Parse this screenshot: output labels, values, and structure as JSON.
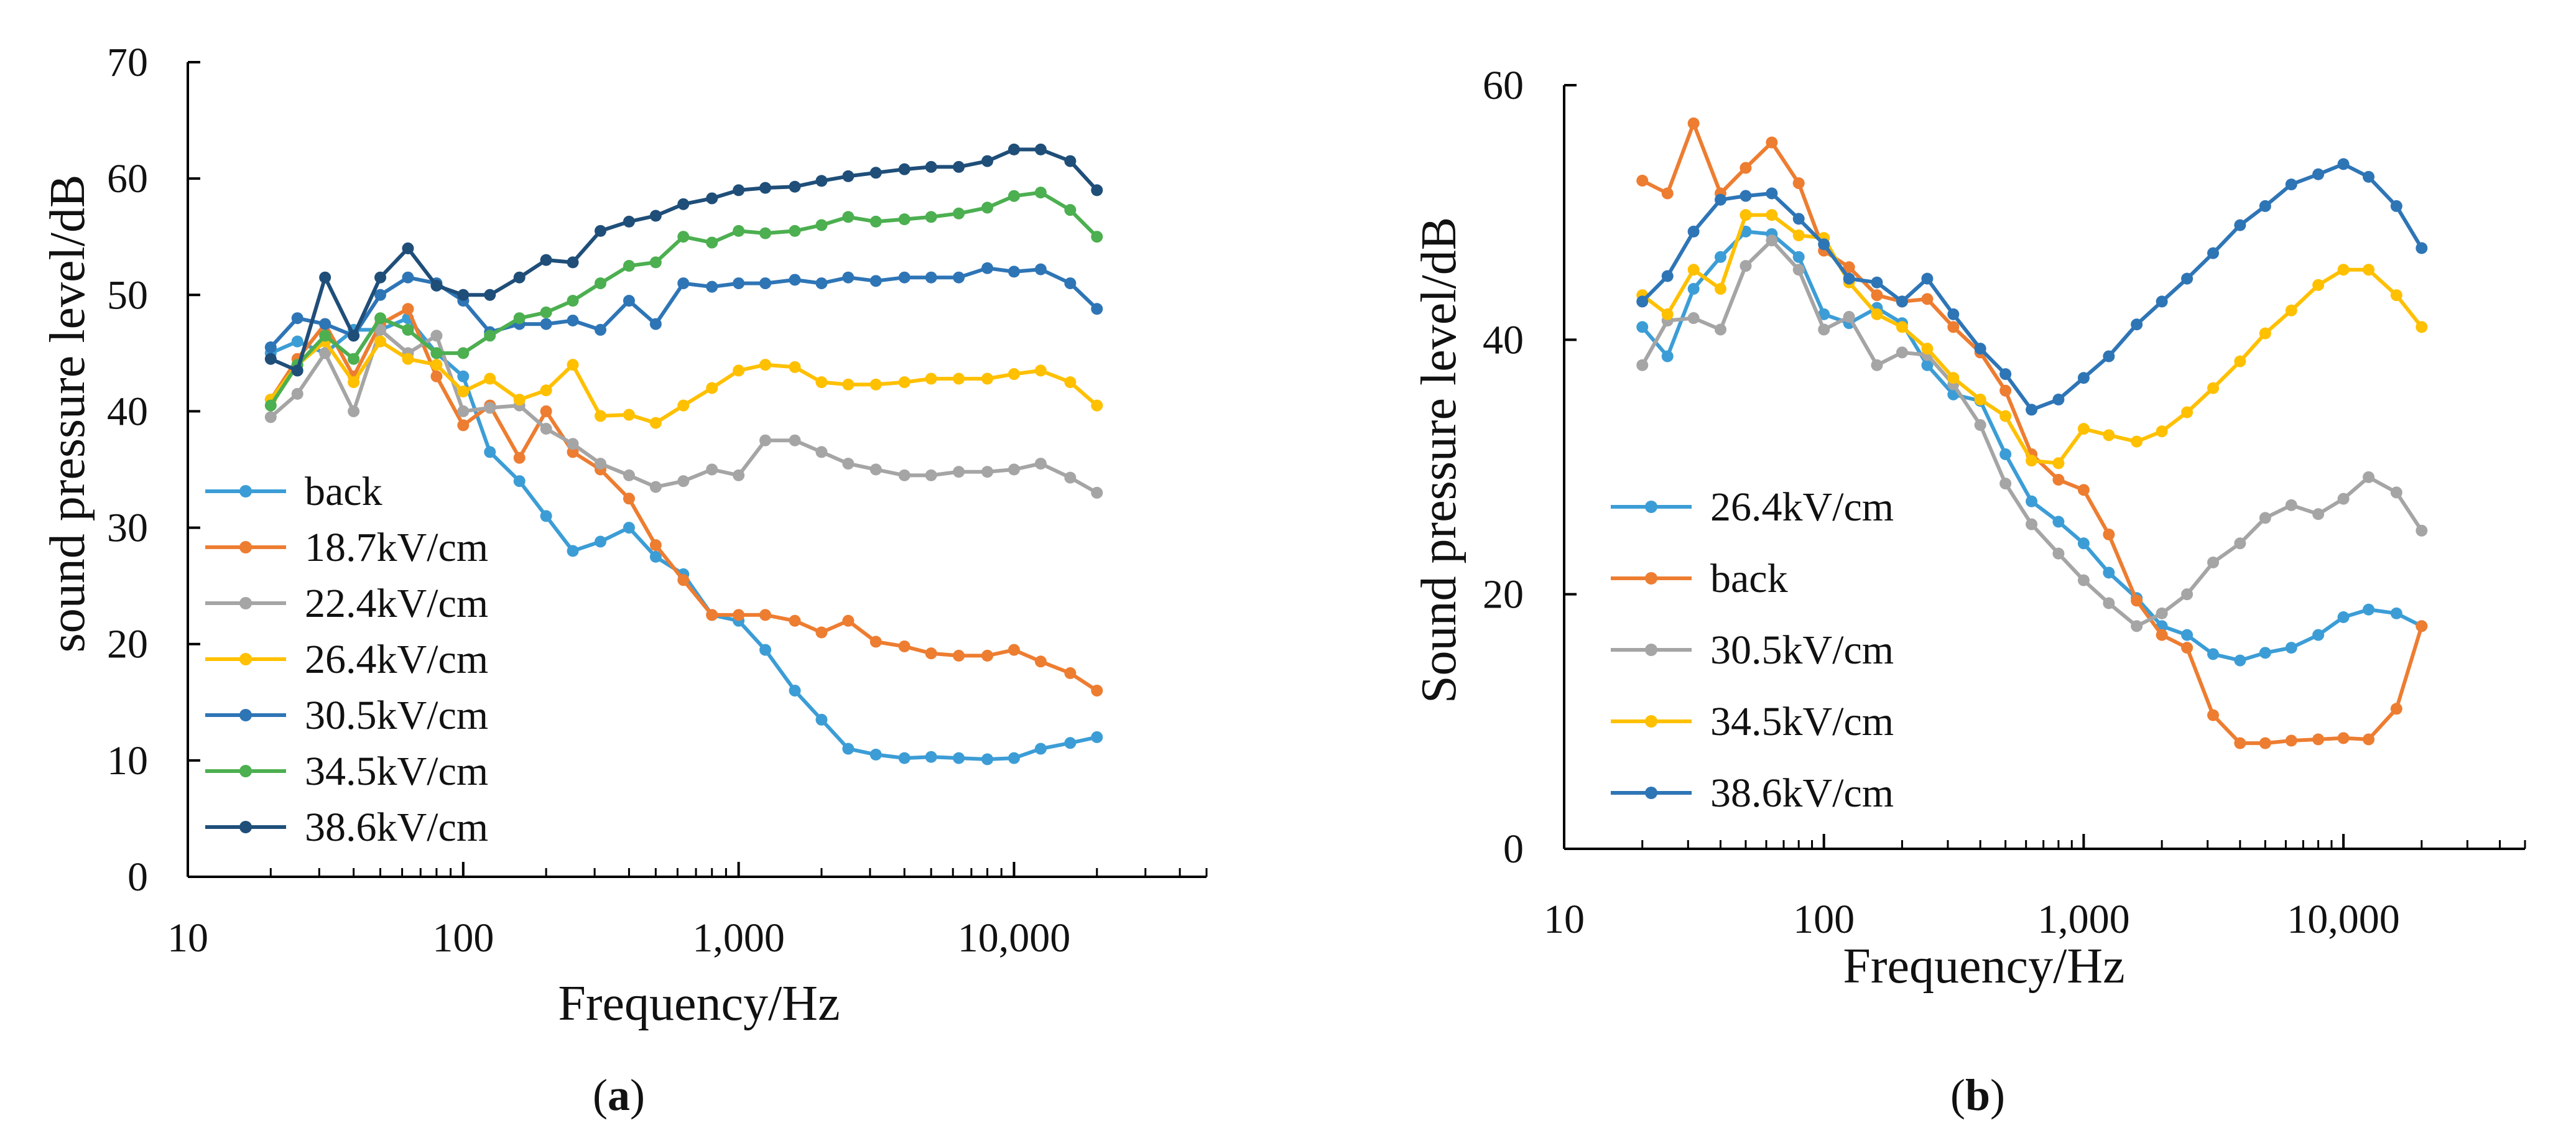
{
  "chart_data": [
    {
      "type": "line",
      "panel": "(a)",
      "panel_letter": "a",
      "xlabel": "Frequency/Hz",
      "ylabel": "sound pressure level/dB",
      "xscale": "log",
      "xlim": [
        10,
        50000
      ],
      "ylim": [
        0,
        70
      ],
      "xticks": [
        10,
        100,
        1000,
        10000
      ],
      "xtick_labels": [
        "10",
        "100",
        "1,000",
        "10,000"
      ],
      "yticks": [
        0,
        10,
        20,
        30,
        40,
        50,
        60,
        70
      ],
      "ytick_labels": [
        "0",
        "10",
        "20",
        "30",
        "40",
        "50",
        "60",
        "70"
      ],
      "grid": false,
      "legend_position": "bottom-left",
      "x": [
        20,
        25,
        31.5,
        40,
        50,
        63,
        80,
        100,
        125,
        160,
        200,
        250,
        315,
        400,
        500,
        630,
        800,
        1000,
        1250,
        1600,
        2000,
        2500,
        3150,
        4000,
        5000,
        6300,
        8000,
        10000,
        12500,
        16000,
        20000
      ],
      "series": [
        {
          "name": "back",
          "color": "#3C9DD6",
          "values": [
            45,
            46,
            45,
            47,
            47,
            48,
            45,
            43,
            36.5,
            34,
            31,
            28,
            28.8,
            30,
            27.5,
            26,
            22.5,
            22,
            19.5,
            16,
            13.5,
            11,
            10.5,
            10.2,
            10.3,
            10.2,
            10.1,
            10.2,
            11,
            11.5,
            12
          ]
        },
        {
          "name": "18.7kV/cm",
          "color": "#ED7D31",
          "values": [
            41,
            44.5,
            47.5,
            43,
            47.5,
            48.8,
            43,
            38.8,
            40.5,
            36,
            40,
            36.5,
            35,
            32.5,
            28.5,
            25.5,
            22.5,
            22.5,
            22.5,
            22,
            21,
            22,
            20.2,
            19.8,
            19.2,
            19,
            19,
            19.5,
            18.5,
            17.5,
            16
          ]
        },
        {
          "name": "22.4kV/cm",
          "color": "#A5A5A5",
          "values": [
            39.5,
            41.5,
            45,
            40,
            47,
            45,
            46.5,
            40,
            40.3,
            40.5,
            38.5,
            37.2,
            35.5,
            34.5,
            33.5,
            34,
            35,
            34.5,
            37.5,
            37.5,
            36.5,
            35.5,
            35,
            34.5,
            34.5,
            34.8,
            34.8,
            35,
            35.5,
            34.3,
            33
          ]
        },
        {
          "name": "26.4kV/cm",
          "color": "#FFC000",
          "values": [
            41,
            44,
            46,
            42.5,
            46,
            44.5,
            44,
            41.7,
            42.8,
            41,
            41.8,
            44,
            39.6,
            39.7,
            39,
            40.5,
            42,
            43.5,
            44,
            43.8,
            42.5,
            42.3,
            42.3,
            42.5,
            42.8,
            42.8,
            42.8,
            43.2,
            43.5,
            42.5,
            40.5
          ]
        },
        {
          "name": "30.5kV/cm",
          "color": "#2E75B6",
          "values": [
            45.5,
            48,
            47.5,
            46.5,
            50,
            51.5,
            51,
            49.5,
            46.8,
            47.5,
            47.5,
            47.8,
            47,
            49.5,
            47.5,
            51,
            50.7,
            51,
            51,
            51.3,
            51,
            51.5,
            51.2,
            51.5,
            51.5,
            51.5,
            52.3,
            52,
            52.2,
            51,
            48.8
          ]
        },
        {
          "name": "34.5kV/cm",
          "color": "#4CAF50",
          "values": [
            40.5,
            44,
            46.5,
            44.5,
            48,
            47,
            45,
            45,
            46.5,
            48,
            48.5,
            49.5,
            51,
            52.5,
            52.8,
            55,
            54.5,
            55.5,
            55.3,
            55.5,
            56,
            56.7,
            56.3,
            56.5,
            56.7,
            57,
            57.5,
            58.5,
            58.8,
            57.3,
            55
          ]
        },
        {
          "name": "38.6kV/cm",
          "color": "#1F4E79",
          "values": [
            44.5,
            43.5,
            51.5,
            46.5,
            51.5,
            54,
            50.8,
            50,
            50,
            51.5,
            53,
            52.8,
            55.5,
            56.3,
            56.8,
            57.8,
            58.3,
            59,
            59.2,
            59.3,
            59.8,
            60.2,
            60.5,
            60.8,
            61,
            61,
            61.5,
            62.5,
            62.5,
            61.5,
            59
          ]
        }
      ]
    },
    {
      "type": "line",
      "panel": "(b)",
      "panel_letter": "b",
      "xlabel": "Frequency/Hz",
      "ylabel": "Sound pressure level/dB",
      "xscale": "log",
      "xlim": [
        10,
        50000
      ],
      "ylim": [
        0,
        60
      ],
      "xticks": [
        10,
        100,
        1000,
        10000
      ],
      "xtick_labels": [
        "10",
        "100",
        "1,000",
        "10,000"
      ],
      "yticks": [
        0,
        20,
        40,
        60
      ],
      "ytick_labels": [
        "0",
        "20",
        "40",
        "60"
      ],
      "grid": false,
      "legend_position": "left",
      "x": [
        20,
        25,
        31.5,
        40,
        50,
        63,
        80,
        100,
        125,
        160,
        200,
        250,
        315,
        400,
        500,
        630,
        800,
        1000,
        1250,
        1600,
        2000,
        2500,
        3150,
        4000,
        5000,
        6300,
        8000,
        10000,
        12500,
        16000,
        20000
      ],
      "series": [
        {
          "name": "26.4kV/cm",
          "color": "#3C9DD6",
          "values": [
            41,
            38.7,
            44,
            46.5,
            48.5,
            48.3,
            46.5,
            42,
            41.3,
            42.5,
            41.3,
            38,
            35.7,
            35.2,
            31,
            27.3,
            25.7,
            24,
            21.7,
            19.7,
            17.5,
            16.8,
            15.3,
            14.8,
            15.4,
            15.8,
            16.8,
            18.2,
            18.8,
            18.5,
            17.5
          ]
        },
        {
          "name": "back",
          "color": "#ED7D31",
          "values": [
            52.5,
            51.5,
            57,
            51.5,
            53.5,
            55.5,
            52.3,
            47,
            45.7,
            43.5,
            43,
            43.2,
            41,
            39,
            36,
            31,
            29,
            28.2,
            24.7,
            19.5,
            16.8,
            15.8,
            10.5,
            8.3,
            8.3,
            8.5,
            8.6,
            8.7,
            8.6,
            11,
            17.5
          ]
        },
        {
          "name": "30.5kV/cm",
          "color": "#A5A5A5",
          "values": [
            38,
            41.5,
            41.7,
            40.8,
            45.8,
            47.8,
            45.5,
            40.8,
            41.8,
            38,
            39,
            38.8,
            36.5,
            33.3,
            28.7,
            25.5,
            23.2,
            21.1,
            19.3,
            17.5,
            18.5,
            20,
            22.5,
            24,
            26,
            27,
            26.3,
            27.5,
            29.2,
            28,
            25
          ]
        },
        {
          "name": "34.5kV/cm",
          "color": "#FFC000",
          "values": [
            43.5,
            42,
            45.5,
            44,
            49.8,
            49.8,
            48.2,
            48,
            44.5,
            42,
            41,
            39.3,
            37,
            35.3,
            34,
            30.5,
            30.3,
            33,
            32.5,
            32,
            32.8,
            34.3,
            36.2,
            38.3,
            40.5,
            42.3,
            44.3,
            45.5,
            45.5,
            43.5,
            41
          ]
        },
        {
          "name": "38.6kV/cm",
          "color": "#2E75B6",
          "values": [
            43,
            45,
            48.5,
            51,
            51.3,
            51.5,
            49.5,
            47.5,
            44.8,
            44.5,
            43,
            44.8,
            42,
            39.3,
            37.3,
            34.5,
            35.3,
            37,
            38.7,
            41.2,
            43,
            44.8,
            46.8,
            49,
            50.5,
            52.2,
            53,
            53.8,
            52.8,
            50.5,
            47.2
          ]
        }
      ]
    }
  ]
}
